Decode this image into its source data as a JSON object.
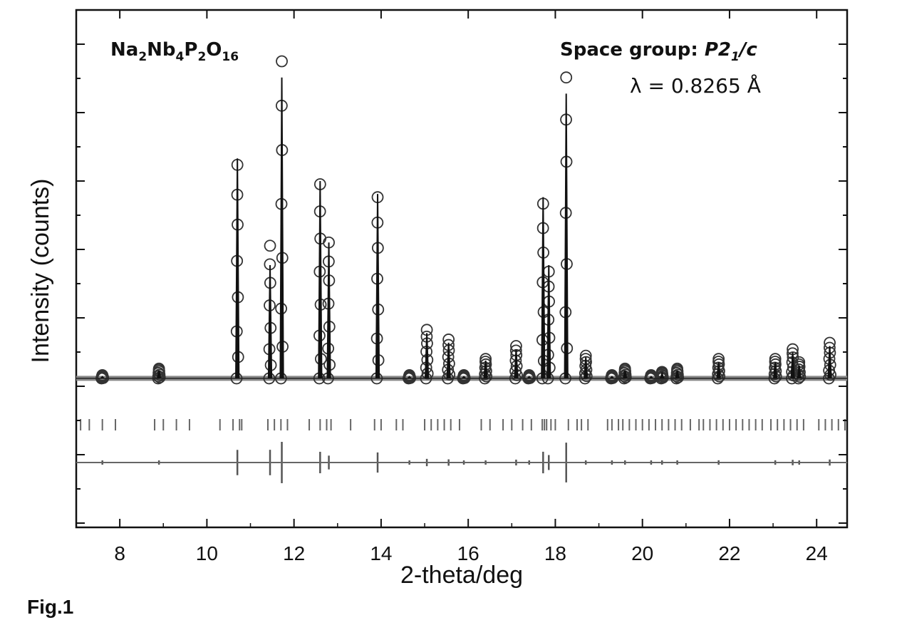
{
  "figure_label": "Fig.1",
  "chart_data": {
    "type": "line",
    "title": "",
    "xlabel": "2-theta/deg",
    "ylabel": "Intensity (counts)",
    "xlim": [
      7.0,
      24.7
    ],
    "x_ticks": [
      8,
      10,
      12,
      14,
      16,
      18,
      20,
      22,
      24
    ],
    "y_tick_labels": "none",
    "grid": false,
    "annotations": {
      "compound": {
        "base1": "Na",
        "sub1": "2",
        "base2": "Nb",
        "sub2": "4",
        "base3": "P",
        "sub3": "2",
        "base4": "O",
        "sub4": "16"
      },
      "space_group": {
        "prefix": "Space group: ",
        "italic1": "P2",
        "sub": "1",
        "italic2": "/c"
      },
      "wavelength": "λ = 0.8265 Å"
    },
    "background_level": 0.02,
    "peaks": [
      {
        "x": 7.6,
        "obs": 0.03,
        "calc": 0.025
      },
      {
        "x": 8.9,
        "obs": 0.05,
        "calc": 0.045
      },
      {
        "x": 10.7,
        "obs": 0.68,
        "calc": 0.7
      },
      {
        "x": 11.45,
        "obs": 0.43,
        "calc": 0.37
      },
      {
        "x": 11.72,
        "obs": 1.0,
        "calc": 0.95
      },
      {
        "x": 12.6,
        "obs": 0.62,
        "calc": 0.63
      },
      {
        "x": 12.8,
        "obs": 0.44,
        "calc": 0.44
      },
      {
        "x": 13.92,
        "obs": 0.58,
        "calc": 0.59
      },
      {
        "x": 14.65,
        "obs": 0.03,
        "calc": 0.025
      },
      {
        "x": 15.05,
        "obs": 0.17,
        "calc": 0.16
      },
      {
        "x": 15.55,
        "obs": 0.14,
        "calc": 0.13
      },
      {
        "x": 15.9,
        "obs": 0.03,
        "calc": 0.025
      },
      {
        "x": 16.4,
        "obs": 0.08,
        "calc": 0.075
      },
      {
        "x": 17.1,
        "obs": 0.12,
        "calc": 0.11
      },
      {
        "x": 17.4,
        "obs": 0.03,
        "calc": 0.025
      },
      {
        "x": 17.72,
        "obs": 0.56,
        "calc": 0.58
      },
      {
        "x": 17.85,
        "obs": 0.35,
        "calc": 0.37
      },
      {
        "x": 18.25,
        "obs": 0.95,
        "calc": 0.9
      },
      {
        "x": 18.7,
        "obs": 0.09,
        "calc": 0.085
      },
      {
        "x": 19.3,
        "obs": 0.03,
        "calc": 0.025
      },
      {
        "x": 19.6,
        "obs": 0.05,
        "calc": 0.045
      },
      {
        "x": 20.2,
        "obs": 0.03,
        "calc": 0.025
      },
      {
        "x": 20.45,
        "obs": 0.04,
        "calc": 0.035
      },
      {
        "x": 20.8,
        "obs": 0.05,
        "calc": 0.045
      },
      {
        "x": 21.75,
        "obs": 0.08,
        "calc": 0.07
      },
      {
        "x": 23.05,
        "obs": 0.08,
        "calc": 0.07
      },
      {
        "x": 23.45,
        "obs": 0.11,
        "calc": 0.1
      },
      {
        "x": 23.6,
        "obs": 0.07,
        "calc": 0.06
      },
      {
        "x": 24.3,
        "obs": 0.13,
        "calc": 0.12
      }
    ],
    "reflection_ticks": [
      7.1,
      7.3,
      7.6,
      7.9,
      8.8,
      9.0,
      9.3,
      9.6,
      10.3,
      10.6,
      10.75,
      10.8,
      11.4,
      11.55,
      11.7,
      11.85,
      12.35,
      12.6,
      12.75,
      12.85,
      13.3,
      13.85,
      14.0,
      14.35,
      14.5,
      15.0,
      15.15,
      15.3,
      15.45,
      15.6,
      15.8,
      16.3,
      16.5,
      16.8,
      17.0,
      17.25,
      17.45,
      17.7,
      17.75,
      17.8,
      17.9,
      18.0,
      18.3,
      18.5,
      18.6,
      18.75,
      19.2,
      19.3,
      19.45,
      19.55,
      19.7,
      19.85,
      20.0,
      20.15,
      20.3,
      20.45,
      20.6,
      20.75,
      20.9,
      21.1,
      21.3,
      21.4,
      21.55,
      21.7,
      21.85,
      22.0,
      22.15,
      22.3,
      22.45,
      22.6,
      22.75,
      22.95,
      23.1,
      23.25,
      23.4,
      23.55,
      23.7,
      24.05,
      24.2,
      24.35,
      24.5,
      24.65
    ]
  }
}
